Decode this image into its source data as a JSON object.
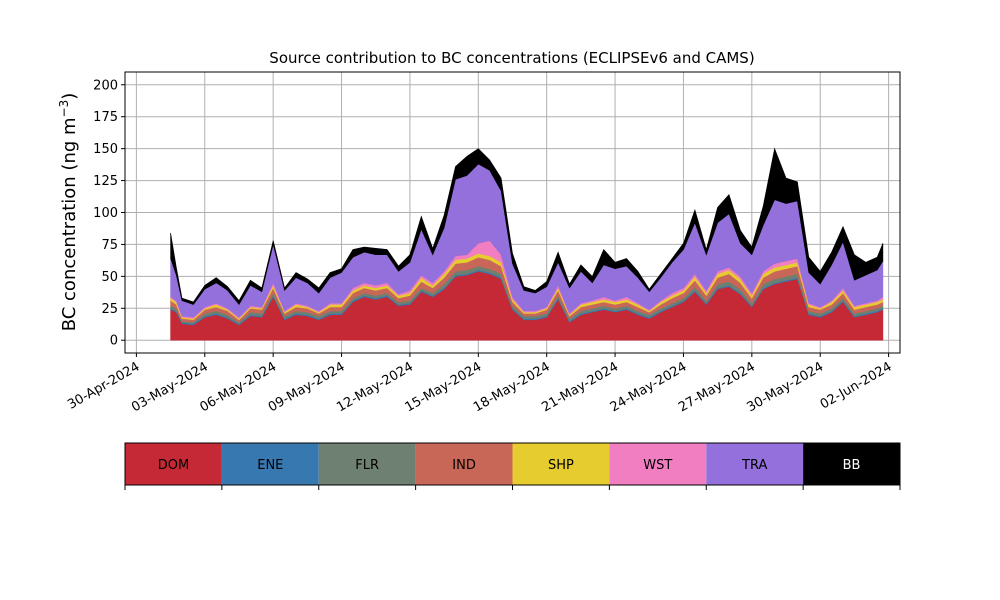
{
  "chart_data": {
    "type": "area",
    "title": "Source contribution to BC concentrations (ECLIPSEv6 and CAMS)",
    "ylabel": "BC concentration (ng m",
    "ylabel_superscript": "−3",
    "ylabel_close": ")",
    "xlabel": "",
    "ylim": [
      -10,
      210
    ],
    "yticks": [
      0,
      25,
      50,
      75,
      100,
      125,
      150,
      175,
      200
    ],
    "xlim": [
      "2024-04-29T12:00",
      "2024-06-02T12:00"
    ],
    "xticks": [
      "2024-04-30",
      "2024-05-03",
      "2024-05-06",
      "2024-05-09",
      "2024-05-12",
      "2024-05-15",
      "2024-05-18",
      "2024-05-21",
      "2024-05-24",
      "2024-05-27",
      "2024-05-30",
      "2024-06-02"
    ],
    "xtick_labels": [
      "30-Apr-2024",
      "03-May-2024",
      "06-May-2024",
      "09-May-2024",
      "12-May-2024",
      "15-May-2024",
      "18-May-2024",
      "21-May-2024",
      "24-May-2024",
      "27-May-2024",
      "30-May-2024",
      "02-Jun-2024"
    ],
    "grid": true,
    "stacked": true,
    "x": [
      "2024-05-01T12:00",
      "2024-05-01T18:00",
      "2024-05-02T00:00",
      "2024-05-02T12:00",
      "2024-05-03T00:00",
      "2024-05-03T12:00",
      "2024-05-04T00:00",
      "2024-05-04T12:00",
      "2024-05-05T00:00",
      "2024-05-05T12:00",
      "2024-05-06T00:00",
      "2024-05-06T12:00",
      "2024-05-07T00:00",
      "2024-05-07T12:00",
      "2024-05-08T00:00",
      "2024-05-08T12:00",
      "2024-05-09T00:00",
      "2024-05-09T12:00",
      "2024-05-10T00:00",
      "2024-05-10T12:00",
      "2024-05-11T00:00",
      "2024-05-11T12:00",
      "2024-05-12T00:00",
      "2024-05-12T12:00",
      "2024-05-13T00:00",
      "2024-05-13T12:00",
      "2024-05-14T00:00",
      "2024-05-14T12:00",
      "2024-05-15T00:00",
      "2024-05-15T12:00",
      "2024-05-16T00:00",
      "2024-05-16T12:00",
      "2024-05-17T00:00",
      "2024-05-17T12:00",
      "2024-05-18T00:00",
      "2024-05-18T12:00",
      "2024-05-19T00:00",
      "2024-05-19T12:00",
      "2024-05-20T00:00",
      "2024-05-20T12:00",
      "2024-05-21T00:00",
      "2024-05-21T12:00",
      "2024-05-22T00:00",
      "2024-05-22T12:00",
      "2024-05-23T00:00",
      "2024-05-23T12:00",
      "2024-05-24T00:00",
      "2024-05-24T12:00",
      "2024-05-25T00:00",
      "2024-05-25T12:00",
      "2024-05-26T00:00",
      "2024-05-26T12:00",
      "2024-05-27T00:00",
      "2024-05-27T12:00",
      "2024-05-28T00:00",
      "2024-05-28T12:00",
      "2024-05-29T00:00",
      "2024-05-29T12:00",
      "2024-05-30T00:00",
      "2024-05-30T12:00",
      "2024-05-31T00:00",
      "2024-05-31T12:00",
      "2024-06-01T00:00",
      "2024-06-01T12:00",
      "2024-06-01T18:00"
    ],
    "series": [
      {
        "name": "DOM",
        "color": "#c42935",
        "values": [
          24,
          22,
          13,
          12,
          18,
          20,
          17,
          12,
          19,
          18,
          34,
          16,
          20,
          19,
          16,
          20,
          20,
          30,
          34,
          32,
          34,
          27,
          28,
          38,
          34,
          40,
          50,
          51,
          54,
          52,
          48,
          24,
          16,
          16,
          18,
          32,
          14,
          20,
          22,
          24,
          22,
          24,
          20,
          17,
          22,
          26,
          30,
          38,
          28,
          40,
          42,
          36,
          26,
          40,
          44,
          46,
          48,
          20,
          18,
          22,
          30,
          18,
          20,
          22,
          24
        ]
      },
      {
        "name": "ENE",
        "color": "#3878b0",
        "values": [
          1,
          1,
          1,
          1,
          1,
          1,
          1,
          1,
          1,
          1,
          1,
          1,
          1,
          1,
          1,
          1,
          1,
          1,
          1,
          1,
          1,
          1,
          1,
          1,
          1,
          1,
          1,
          1,
          1,
          1,
          1,
          1,
          1,
          1,
          1,
          1,
          1,
          1,
          1,
          1,
          1,
          1,
          1,
          1,
          1,
          1,
          1,
          1,
          1,
          1,
          1,
          1,
          1,
          1,
          1,
          1,
          1,
          1,
          1,
          1,
          1,
          1,
          1,
          1,
          1
        ]
      },
      {
        "name": "FLR",
        "color": "#6e8070",
        "values": [
          2,
          2,
          1,
          1,
          2,
          2,
          2,
          1,
          2,
          2,
          2,
          2,
          2,
          2,
          2,
          2,
          2,
          2,
          2,
          2,
          2,
          2,
          2,
          2,
          2,
          3,
          3,
          3,
          3,
          3,
          3,
          2,
          2,
          2,
          2,
          2,
          2,
          2,
          2,
          2,
          2,
          2,
          2,
          2,
          2,
          2,
          2,
          3,
          2,
          3,
          3,
          3,
          2,
          3,
          3,
          3,
          3,
          2,
          2,
          2,
          2,
          2,
          2,
          2,
          2
        ]
      },
      {
        "name": "IND",
        "color": "#c86658",
        "values": [
          4,
          3,
          2,
          2,
          3,
          3,
          3,
          2,
          3,
          3,
          4,
          2,
          3,
          3,
          2,
          3,
          3,
          4,
          4,
          4,
          4,
          3,
          4,
          5,
          4,
          5,
          6,
          6,
          7,
          7,
          6,
          3,
          2,
          2,
          3,
          4,
          2,
          3,
          3,
          3,
          3,
          3,
          3,
          2,
          3,
          4,
          4,
          5,
          4,
          5,
          6,
          5,
          4,
          5,
          6,
          6,
          6,
          3,
          3,
          3,
          4,
          3,
          3,
          3,
          3
        ]
      },
      {
        "name": "SHP",
        "color": "#e6cc2e",
        "values": [
          2,
          2,
          1,
          1,
          1,
          2,
          1,
          1,
          1,
          1,
          2,
          1,
          2,
          1,
          1,
          2,
          2,
          2,
          2,
          2,
          2,
          2,
          2,
          3,
          2,
          3,
          3,
          3,
          3,
          3,
          3,
          2,
          1,
          1,
          1,
          2,
          1,
          2,
          2,
          2,
          2,
          2,
          2,
          1,
          2,
          2,
          2,
          3,
          2,
          3,
          3,
          3,
          2,
          3,
          3,
          3,
          3,
          2,
          1,
          2,
          2,
          2,
          2,
          2,
          2
        ]
      },
      {
        "name": "WST",
        "color": "#f07ec0",
        "values": [
          1,
          1,
          1,
          1,
          1,
          1,
          1,
          1,
          1,
          1,
          2,
          1,
          1,
          1,
          1,
          1,
          1,
          2,
          2,
          2,
          2,
          1,
          2,
          2,
          2,
          2,
          3,
          3,
          8,
          12,
          6,
          2,
          1,
          1,
          1,
          2,
          1,
          1,
          1,
          2,
          1,
          2,
          1,
          1,
          1,
          2,
          2,
          2,
          2,
          2,
          2,
          2,
          2,
          2,
          3,
          3,
          3,
          1,
          1,
          1,
          2,
          1,
          1,
          1,
          2
        ]
      },
      {
        "name": "TRA",
        "color": "#9370db",
        "values": [
          30,
          20,
          12,
          10,
          14,
          16,
          14,
          10,
          16,
          12,
          30,
          16,
          20,
          18,
          14,
          20,
          24,
          24,
          24,
          24,
          22,
          18,
          22,
          36,
          22,
          34,
          60,
          62,
          62,
          55,
          50,
          26,
          16,
          14,
          16,
          18,
          20,
          25,
          14,
          25,
          25,
          24,
          20,
          14,
          18,
          24,
          30,
          40,
          28,
          38,
          42,
          26,
          30,
          36,
          50,
          45,
          45,
          24,
          18,
          28,
          36,
          20,
          22,
          24,
          28
        ]
      },
      {
        "name": "BB",
        "color": "#000000",
        "values": [
          20,
          6,
          2,
          2,
          3,
          4,
          3,
          3,
          4,
          3,
          3,
          2,
          4,
          3,
          4,
          4,
          3,
          6,
          4,
          5,
          4,
          4,
          6,
          10,
          5,
          10,
          10,
          15,
          12,
          8,
          10,
          8,
          3,
          2,
          4,
          8,
          3,
          5,
          5,
          12,
          5,
          6,
          5,
          2,
          3,
          3,
          5,
          10,
          4,
          12,
          15,
          10,
          6,
          15,
          40,
          20,
          15,
          12,
          10,
          10,
          12,
          20,
          10,
          10,
          14
        ]
      }
    ],
    "legend_placement": "bottom",
    "legend": [
      {
        "label": "DOM",
        "color": "#c42935",
        "text_color": "#000000"
      },
      {
        "label": "ENE",
        "color": "#3878b0",
        "text_color": "#000000"
      },
      {
        "label": "FLR",
        "color": "#6e8070",
        "text_color": "#000000"
      },
      {
        "label": "IND",
        "color": "#c86658",
        "text_color": "#000000"
      },
      {
        "label": "SHP",
        "color": "#e6cc2e",
        "text_color": "#000000"
      },
      {
        "label": "WST",
        "color": "#f07ec0",
        "text_color": "#000000"
      },
      {
        "label": "TRA",
        "color": "#9370db",
        "text_color": "#000000"
      },
      {
        "label": "BB",
        "color": "#000000",
        "text_color": "#ffffff"
      }
    ]
  }
}
